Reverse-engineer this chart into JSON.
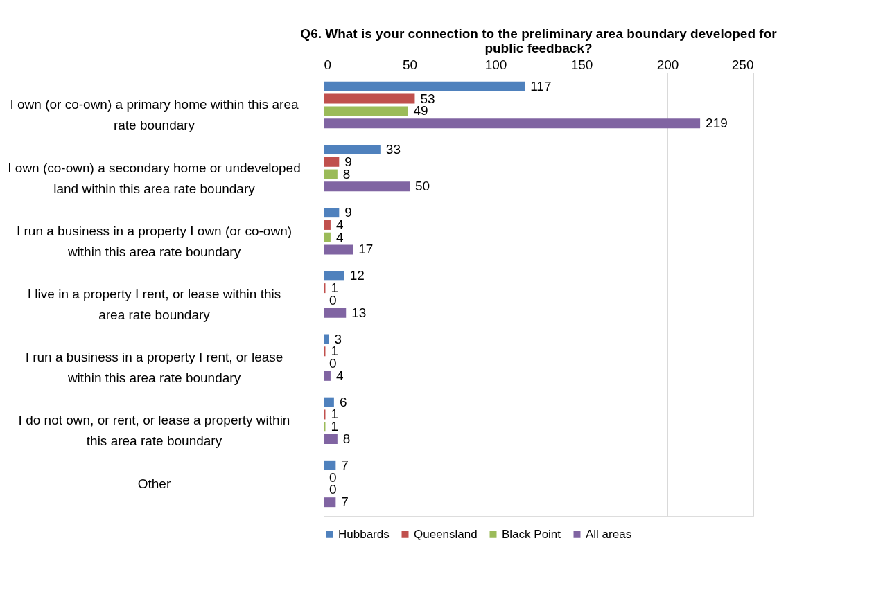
{
  "chart_data": {
    "type": "bar",
    "orientation": "horizontal",
    "title": "Q6. What is your connection to the preliminary area boundary developed for public feedback?",
    "categories": [
      "I own (or co-own) a primary home within this area rate boundary",
      "I own (co-own) a secondary home or undeveloped land within this area rate boundary",
      "I run a business in a property I own (or co-own) within this area rate boundary",
      "I live in a property I rent, or lease within this area rate boundary",
      "I run a business in a property I rent, or lease within this area rate boundary",
      "I do not own, or rent, or lease a property within this area rate boundary",
      "Other"
    ],
    "series": [
      {
        "name": "Hubbards",
        "color": "#4f81bd",
        "values": [
          117,
          33,
          9,
          12,
          3,
          6,
          7
        ]
      },
      {
        "name": "Queensland",
        "color": "#c0504d",
        "values": [
          53,
          9,
          4,
          1,
          1,
          1,
          0
        ]
      },
      {
        "name": "Black Point",
        "color": "#9bbb59",
        "values": [
          49,
          8,
          4,
          0,
          0,
          1,
          0
        ]
      },
      {
        "name": "All areas",
        "color": "#8064a2",
        "values": [
          219,
          50,
          17,
          13,
          4,
          8,
          7
        ]
      }
    ],
    "xlim": [
      0,
      250
    ],
    "xticks": [
      0,
      50,
      100,
      150,
      200,
      250
    ],
    "grid": "x",
    "legend": "bottom",
    "data_labels": true
  }
}
